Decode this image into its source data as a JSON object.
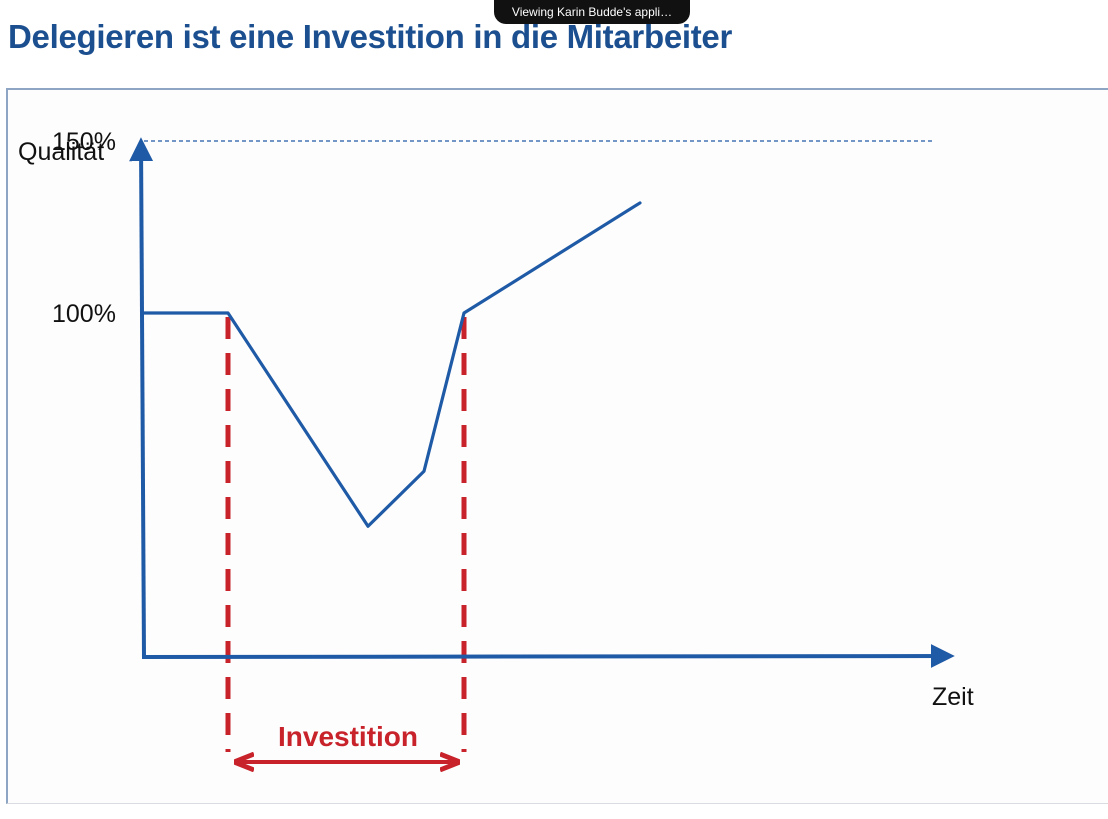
{
  "title": "Delegieren ist eine Investition in die Mitarbeiter",
  "share_banner": "Viewing Karin Budde's appli…",
  "colors": {
    "title": "#1b4f8f",
    "axis": "#1f5aa6",
    "curve": "#1f5aa6",
    "marker": "#c8222a",
    "reference_line": "#1f5aa6"
  },
  "chart_data": {
    "type": "line",
    "ylabel": "Qualität",
    "xlabel": "Zeit",
    "y_ticks": [
      {
        "label": "150%",
        "value": 150
      },
      {
        "label": "100%",
        "value": 100
      }
    ],
    "ylim": [
      0,
      175
    ],
    "reference_line": {
      "value": 150,
      "style": "dashed"
    },
    "series": [
      {
        "x": [
          0,
          1.05,
          2.8,
          3.5,
          4.0,
          6.2
        ],
        "y": [
          100,
          100,
          38,
          54,
          100,
          132
        ]
      }
    ],
    "xlim": [
      0,
      10
    ],
    "markers": [
      {
        "x": 1.05,
        "style": "dashed-red"
      },
      {
        "x": 4.0,
        "style": "dashed-red"
      }
    ],
    "annotation": {
      "label": "Investition",
      "from_x": 1.05,
      "to_x": 4.0
    }
  }
}
